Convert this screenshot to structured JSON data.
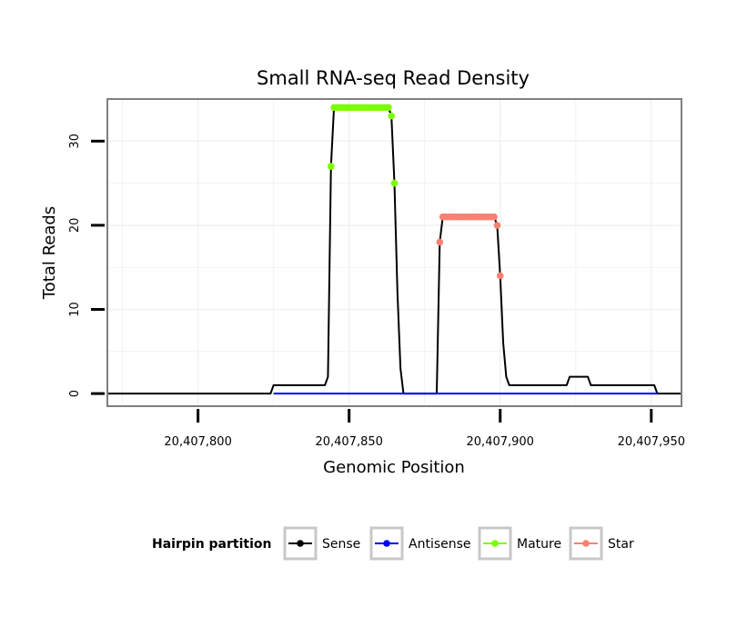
{
  "chart_data": {
    "type": "line",
    "title": "Small RNA-seq Read Density",
    "xlabel": "Genomic Position",
    "ylabel": "Total Reads",
    "xlim": [
      20407770,
      20407960
    ],
    "ylim": [
      -1.5,
      35
    ],
    "x_ticks": [
      20407800,
      20407850,
      20407900,
      20407950
    ],
    "x_tick_labels": [
      "20,407,800",
      "20,407,850",
      "20,407,900",
      "20,407,950"
    ],
    "y_ticks": [
      0,
      10,
      20,
      30
    ],
    "y_tick_labels": [
      "0",
      "10",
      "20",
      "30"
    ],
    "grid": true,
    "legend": {
      "title": "Hairpin partition",
      "position": "bottom",
      "entries": [
        {
          "name": "Sense",
          "color": "#000000"
        },
        {
          "name": "Antisense",
          "color": "#0000ff"
        },
        {
          "name": "Mature",
          "color": "#7cfc00"
        },
        {
          "name": "Star",
          "color": "#fa8072"
        }
      ]
    },
    "series": [
      {
        "name": "Sense",
        "color": "#000000",
        "line": true,
        "points": [
          [
            20407770,
            0
          ],
          [
            20407824,
            0
          ],
          [
            20407825,
            1
          ],
          [
            20407842,
            1
          ],
          [
            20407843,
            2
          ],
          [
            20407844,
            27
          ],
          [
            20407845,
            34
          ],
          [
            20407863,
            34
          ],
          [
            20407864,
            33
          ],
          [
            20407865,
            25
          ],
          [
            20407866,
            12
          ],
          [
            20407867,
            3
          ],
          [
            20407868,
            0
          ],
          [
            20407879,
            0
          ],
          [
            20407880,
            18
          ],
          [
            20407881,
            21
          ],
          [
            20407898,
            21
          ],
          [
            20407899,
            20
          ],
          [
            20407900,
            14
          ],
          [
            20407901,
            6
          ],
          [
            20407902,
            2
          ],
          [
            20407903,
            1
          ],
          [
            20407922,
            1
          ],
          [
            20407923,
            2
          ],
          [
            20407929,
            2
          ],
          [
            20407930,
            1
          ],
          [
            20407951,
            1
          ],
          [
            20407952,
            0
          ],
          [
            20407960,
            0
          ]
        ]
      },
      {
        "name": "Antisense",
        "color": "#0000ff",
        "line": true,
        "points": [
          [
            20407825,
            0
          ],
          [
            20407952,
            0
          ]
        ]
      },
      {
        "name": "Mature",
        "color": "#7cfc00",
        "line": false,
        "points": [
          [
            20407844,
            27
          ],
          [
            20407845,
            34
          ],
          [
            20407846,
            34
          ],
          [
            20407847,
            34
          ],
          [
            20407848,
            34
          ],
          [
            20407849,
            34
          ],
          [
            20407850,
            34
          ],
          [
            20407851,
            34
          ],
          [
            20407852,
            34
          ],
          [
            20407853,
            34
          ],
          [
            20407854,
            34
          ],
          [
            20407855,
            34
          ],
          [
            20407856,
            34
          ],
          [
            20407857,
            34
          ],
          [
            20407858,
            34
          ],
          [
            20407859,
            34
          ],
          [
            20407860,
            34
          ],
          [
            20407861,
            34
          ],
          [
            20407862,
            34
          ],
          [
            20407863,
            34
          ],
          [
            20407864,
            33
          ],
          [
            20407865,
            25
          ]
        ]
      },
      {
        "name": "Star",
        "color": "#fa8072",
        "line": false,
        "points": [
          [
            20407880,
            18
          ],
          [
            20407881,
            21
          ],
          [
            20407882,
            21
          ],
          [
            20407883,
            21
          ],
          [
            20407884,
            21
          ],
          [
            20407885,
            21
          ],
          [
            20407886,
            21
          ],
          [
            20407887,
            21
          ],
          [
            20407888,
            21
          ],
          [
            20407889,
            21
          ],
          [
            20407890,
            21
          ],
          [
            20407891,
            21
          ],
          [
            20407892,
            21
          ],
          [
            20407893,
            21
          ],
          [
            20407894,
            21
          ],
          [
            20407895,
            21
          ],
          [
            20407896,
            21
          ],
          [
            20407897,
            21
          ],
          [
            20407898,
            21
          ],
          [
            20407899,
            20
          ],
          [
            20407900,
            14
          ]
        ]
      }
    ]
  }
}
